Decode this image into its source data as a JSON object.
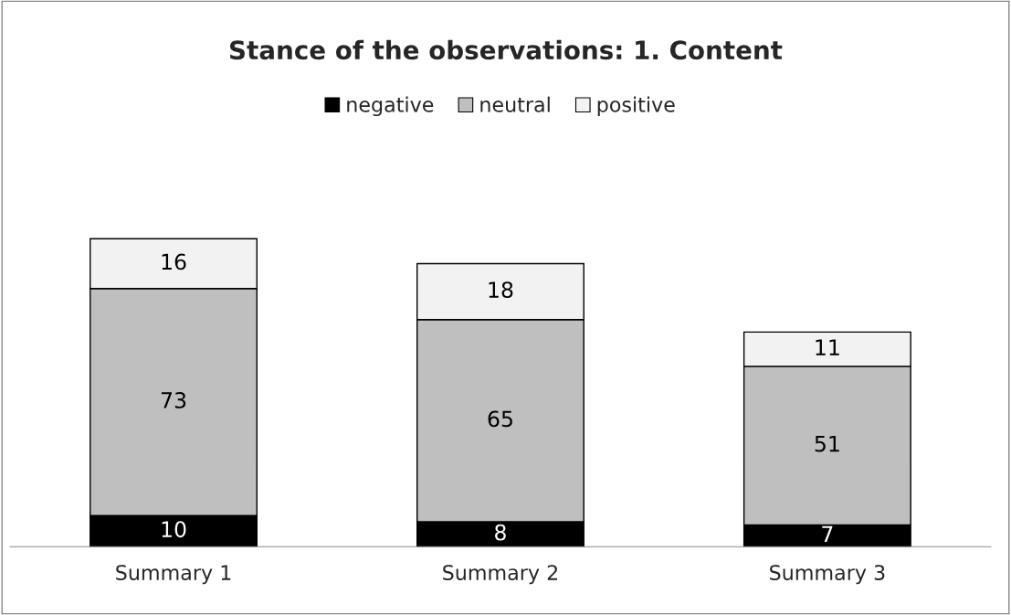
{
  "chart_data": {
    "type": "bar",
    "title": "Stance of the observations: 1. Content",
    "categories": [
      "Summary 1",
      "Summary 2",
      "Summary 3"
    ],
    "series": [
      {
        "name": "negative",
        "color": "#000000",
        "values": [
          10,
          8,
          7
        ]
      },
      {
        "name": "neutral",
        "color": "#bfbfbf",
        "values": [
          73,
          65,
          51
        ]
      },
      {
        "name": "positive",
        "color": "#f2f2f2",
        "values": [
          16,
          18,
          11
        ]
      }
    ],
    "stacked": true,
    "data_labels": true,
    "legend": "top",
    "tick_labels": "x",
    "grid": false
  }
}
